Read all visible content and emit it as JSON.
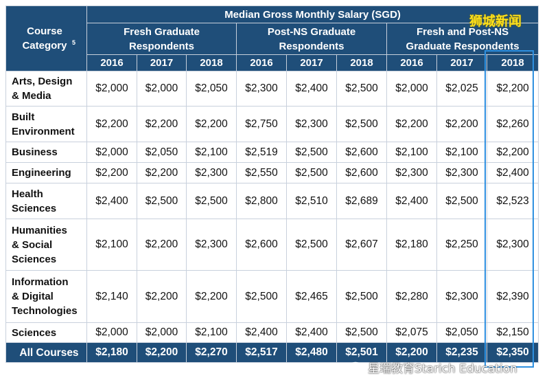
{
  "table": {
    "salary_header": "Median Gross Monthly Salary (SGD)",
    "category_header": "Course Category",
    "category_sup": "5",
    "groups": [
      {
        "line1": "Fresh Graduate",
        "line2": "Respondents"
      },
      {
        "line1": "Post-NS Graduate",
        "line2": "Respondents"
      },
      {
        "line1": "Fresh and Post-NS",
        "line2": "Graduate Respondents"
      }
    ],
    "years": [
      "2016",
      "2017",
      "2018",
      "2016",
      "2017",
      "2018",
      "2016",
      "2017",
      "2018"
    ],
    "rows": [
      {
        "lines": [
          "Arts, Design",
          "& Media"
        ],
        "values": [
          "$2,000",
          "$2,000",
          "$2,050",
          "$2,300",
          "$2,400",
          "$2,500",
          "$2,000",
          "$2,025",
          "$2,200"
        ]
      },
      {
        "lines": [
          "Built",
          "Environment"
        ],
        "values": [
          "$2,200",
          "$2,200",
          "$2,200",
          "$2,750",
          "$2,300",
          "$2,500",
          "$2,200",
          "$2,200",
          "$2,260"
        ]
      },
      {
        "lines": [
          "Business"
        ],
        "values": [
          "$2,000",
          "$2,050",
          "$2,100",
          "$2,519",
          "$2,500",
          "$2,600",
          "$2,100",
          "$2,100",
          "$2,200"
        ]
      },
      {
        "lines": [
          "Engineering"
        ],
        "values": [
          "$2,200",
          "$2,200",
          "$2,300",
          "$2,550",
          "$2,500",
          "$2,600",
          "$2,300",
          "$2,300",
          "$2,400"
        ]
      },
      {
        "lines": [
          "Health",
          "Sciences"
        ],
        "values": [
          "$2,400",
          "$2,500",
          "$2,500",
          "$2,800",
          "$2,510",
          "$2,689",
          "$2,400",
          "$2,500",
          "$2,523"
        ]
      },
      {
        "lines": [
          "Humanities",
          "& Social",
          "Sciences"
        ],
        "values": [
          "$2,100",
          "$2,200",
          "$2,300",
          "$2,600",
          "$2,500",
          "$2,607",
          "$2,180",
          "$2,250",
          "$2,300"
        ]
      },
      {
        "lines": [
          "Information",
          "& Digital",
          "Technologies"
        ],
        "values": [
          "$2,140",
          "$2,200",
          "$2,200",
          "$2,500",
          "$2,465",
          "$2,500",
          "$2,280",
          "$2,300",
          "$2,390"
        ]
      },
      {
        "lines": [
          "Sciences"
        ],
        "values": [
          "$2,000",
          "$2,000",
          "$2,100",
          "$2,400",
          "$2,400",
          "$2,500",
          "$2,075",
          "$2,050",
          "$2,150"
        ]
      }
    ],
    "total": {
      "label": "All Courses",
      "values": [
        "$2,180",
        "$2,200",
        "$2,270",
        "$2,517",
        "$2,480",
        "$2,501",
        "$2,200",
        "$2,235",
        "$2,350"
      ]
    }
  },
  "watermarks": {
    "top": "狮城新闻",
    "bottom": "星瑞教育Starich Education",
    "bottom_icon": "wechat-icon"
  },
  "colors": {
    "header_bg": "#1f4e79",
    "highlight_border": "#2e90e0",
    "watermark_top": "#ffe11a"
  }
}
